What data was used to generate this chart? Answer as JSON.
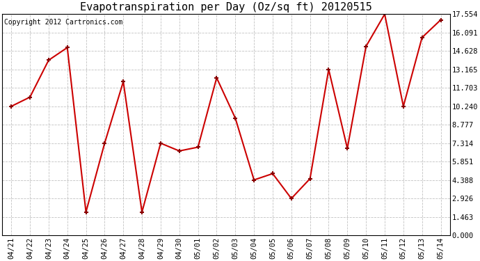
{
  "title": "Evapotranspiration per Day (Oz/sq ft) 20120515",
  "copyright_text": "Copyright 2012 Cartronics.com",
  "categories": [
    "04/21",
    "04/22",
    "04/23",
    "04/24",
    "04/25",
    "04/26",
    "04/27",
    "04/28",
    "04/29",
    "04/30",
    "05/01",
    "05/02",
    "05/03",
    "05/04",
    "05/05",
    "05/06",
    "05/07",
    "05/08",
    "05/09",
    "05/10",
    "05/11",
    "05/12",
    "05/13",
    "05/14"
  ],
  "values": [
    10.24,
    10.97,
    13.9,
    14.9,
    1.85,
    7.314,
    12.2,
    1.85,
    7.314,
    6.7,
    7.0,
    12.5,
    9.3,
    4.4,
    4.9,
    2.926,
    4.5,
    13.165,
    6.9,
    15.0,
    17.554,
    10.24,
    15.7,
    17.1
  ],
  "line_color": "#cc0000",
  "marker_color": "#880000",
  "background_color": "#ffffff",
  "grid_color": "#bbbbbb",
  "yticks": [
    0.0,
    1.463,
    2.926,
    4.388,
    5.851,
    7.314,
    8.777,
    10.24,
    11.703,
    13.165,
    14.628,
    16.091,
    17.554
  ],
  "ymin": 0.0,
  "ymax": 17.554,
  "title_fontsize": 11,
  "copyright_fontsize": 7,
  "tick_fontsize": 7.5
}
